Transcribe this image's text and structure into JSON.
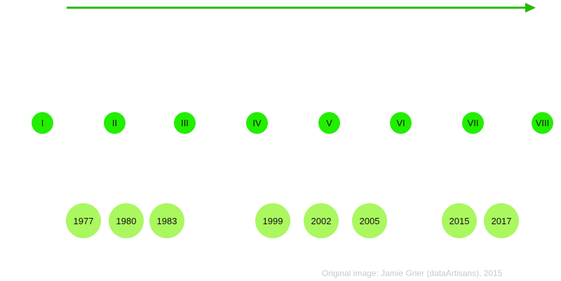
{
  "colors": {
    "arrow": "#22bb00",
    "episode_circle": "#22ee00",
    "year_circle": "#aaf760",
    "credit_text": "#c8c8c8"
  },
  "episodes": [
    "I",
    "II",
    "III",
    "IV",
    "V",
    "VI",
    "VII",
    "VIII"
  ],
  "years": [
    "1977",
    "1980",
    "1983",
    "1999",
    "2002",
    "2005",
    "2015",
    "2017"
  ],
  "credit": "Original image: Jamie Grier (dataArtisans), 2015"
}
